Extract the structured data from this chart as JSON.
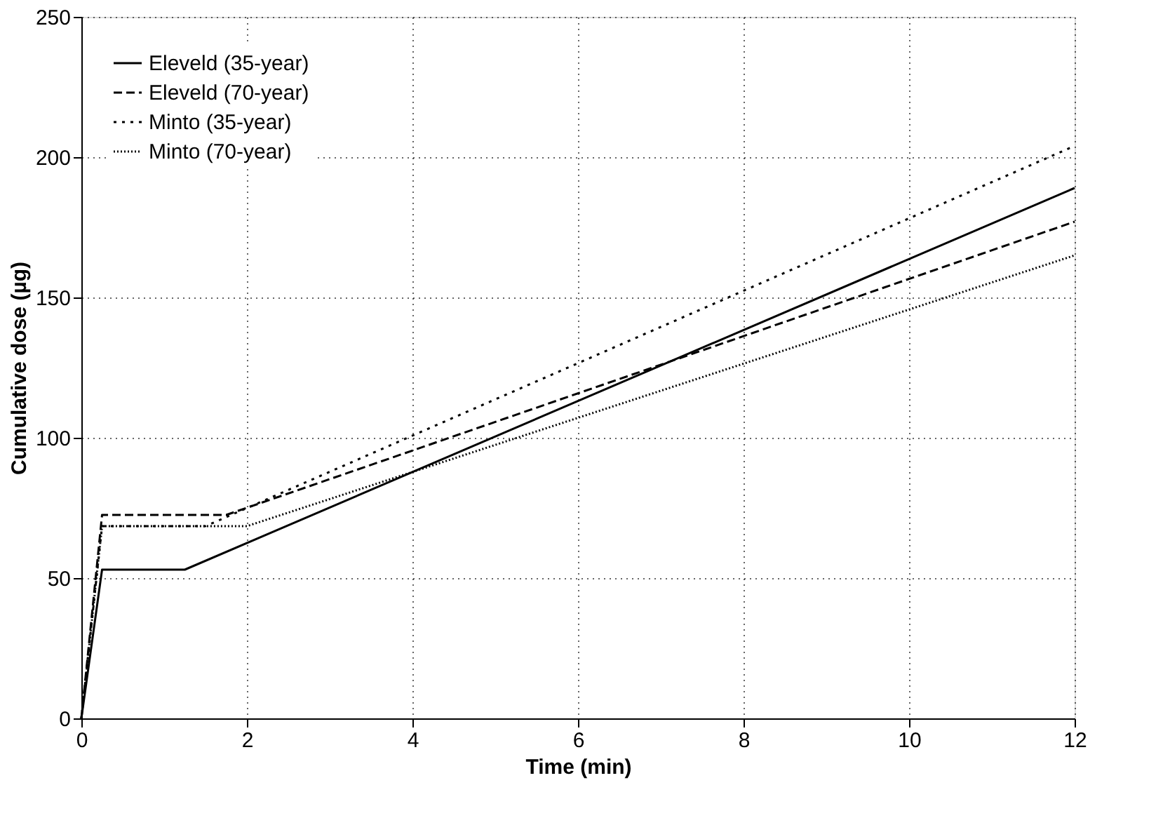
{
  "chart_data": {
    "type": "line",
    "xlabel": "Time (min)",
    "ylabel": "Cumulative dose (µg)",
    "xlim": [
      0,
      12
    ],
    "ylim": [
      0,
      250
    ],
    "xticks": [
      0,
      2,
      4,
      6,
      8,
      10,
      12
    ],
    "yticks": [
      0,
      50,
      100,
      150,
      200,
      250
    ],
    "grid": true,
    "legend": "top left",
    "marker": "none",
    "series": [
      {
        "name": "Eleveld (35-year)",
        "color": "#000000",
        "line_style": "solid",
        "x": [
          0,
          0.25,
          1.25,
          12
        ],
        "values": [
          0,
          53,
          53,
          189
        ]
      },
      {
        "name": "Eleveld (70-year)",
        "color": "#000000",
        "line_style": "dashed",
        "x": [
          0,
          0.25,
          1.75,
          12
        ],
        "values": [
          0,
          72.5,
          72.5,
          177
        ]
      },
      {
        "name": "Minto (35-year)",
        "color": "#000000",
        "line_style": "dotted",
        "x": [
          0,
          0.25,
          1.5,
          12
        ],
        "values": [
          0,
          68.5,
          68.5,
          204
        ]
      },
      {
        "name": "Minto (70-year)",
        "color": "#000000",
        "line_style": "dotted",
        "x": [
          0,
          0.25,
          2,
          12
        ],
        "values": [
          0,
          68.5,
          68.5,
          165
        ]
      }
    ]
  }
}
